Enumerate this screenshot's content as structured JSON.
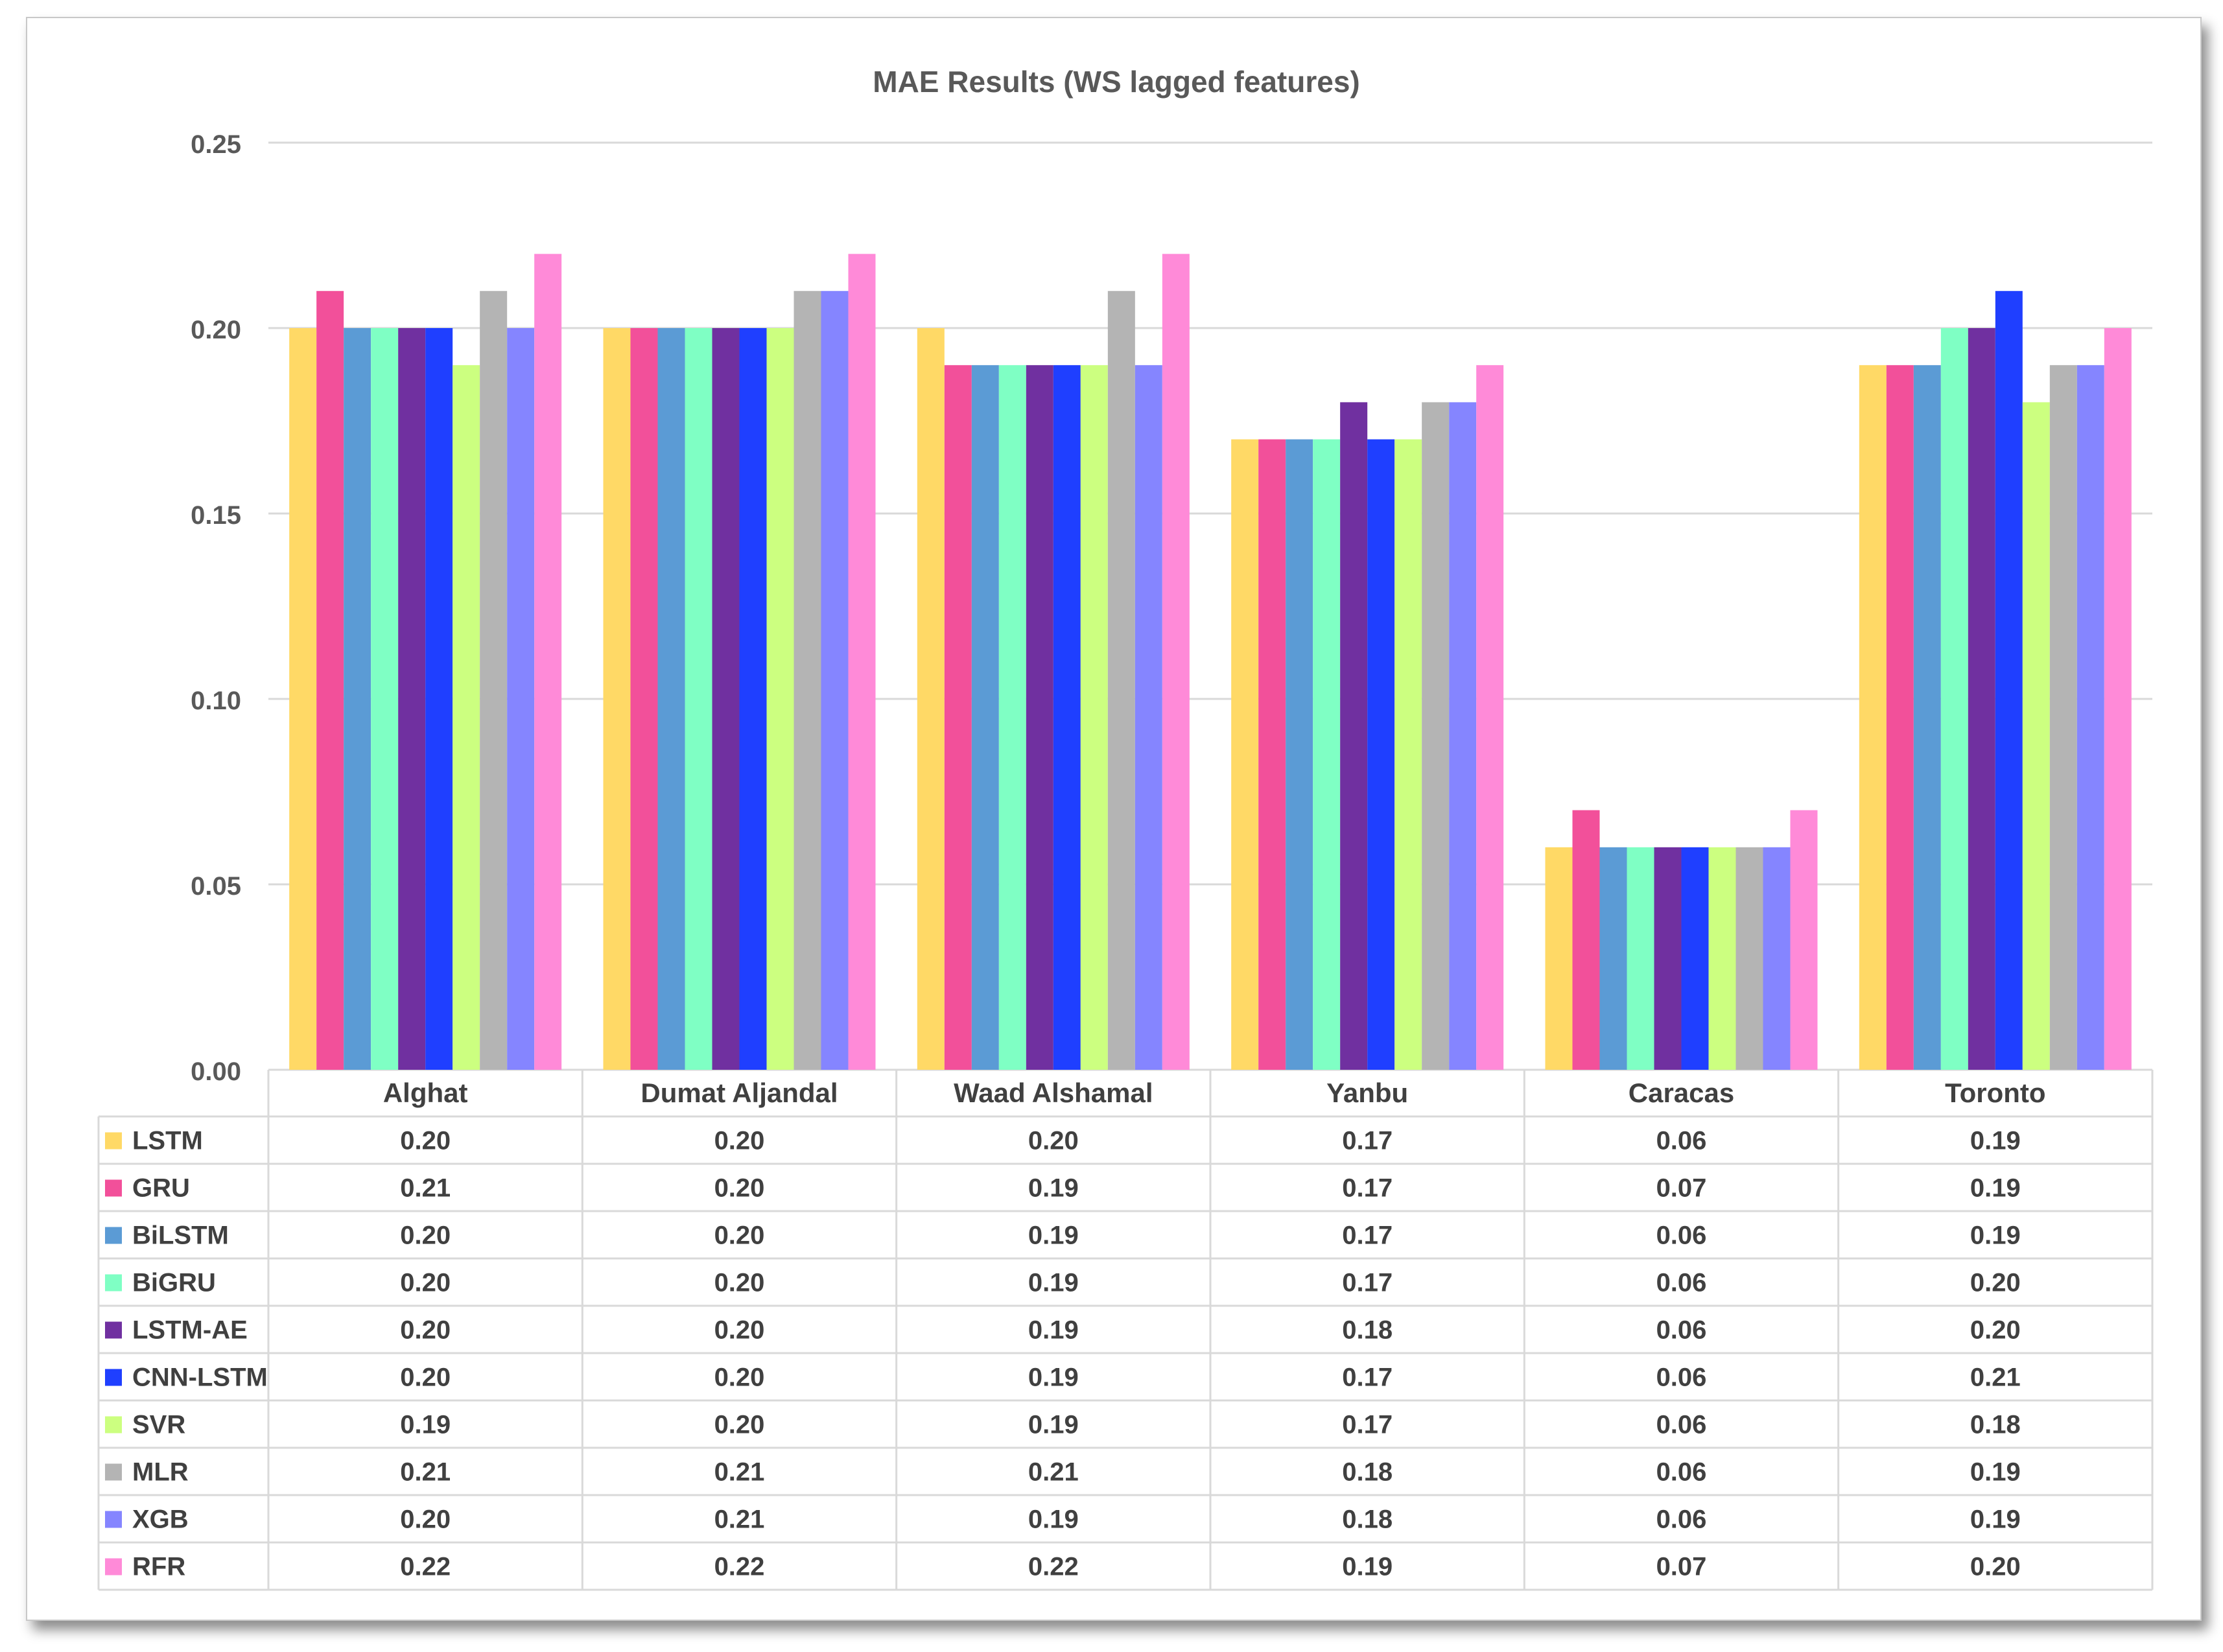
{
  "chart_data": {
    "type": "bar",
    "title": "MAE Results (WS lagged features)",
    "xlabel": "",
    "ylabel": "",
    "ylim": [
      0,
      0.25
    ],
    "yticks": [
      "0.00",
      "0.05",
      "0.10",
      "0.15",
      "0.20",
      "0.25"
    ],
    "grid": true,
    "legend": "data-table",
    "categories": [
      "Alghat",
      "Dumat Aljandal",
      "Waad Alshamal",
      "Yanbu",
      "Caracas",
      "Toronto"
    ],
    "series": [
      {
        "name": "LSTM",
        "color": "#FFD966",
        "values": [
          0.2,
          0.2,
          0.2,
          0.17,
          0.06,
          0.19
        ],
        "labels": [
          "0.20",
          "0.20",
          "0.20",
          "0.17",
          "0.06",
          "0.19"
        ]
      },
      {
        "name": "GRU",
        "color": "#F2509A",
        "values": [
          0.21,
          0.2,
          0.19,
          0.17,
          0.07,
          0.19
        ],
        "labels": [
          "0.21",
          "0.20",
          "0.19",
          "0.17",
          "0.07",
          "0.19"
        ]
      },
      {
        "name": "BiLSTM",
        "color": "#5B9BD5",
        "values": [
          0.2,
          0.2,
          0.19,
          0.17,
          0.06,
          0.19
        ],
        "labels": [
          "0.20",
          "0.20",
          "0.19",
          "0.17",
          "0.06",
          "0.19"
        ]
      },
      {
        "name": "BiGRU",
        "color": "#7FFFC4",
        "values": [
          0.2,
          0.2,
          0.19,
          0.17,
          0.06,
          0.2
        ],
        "labels": [
          "0.20",
          "0.20",
          "0.19",
          "0.17",
          "0.06",
          "0.20"
        ]
      },
      {
        "name": "LSTM-AE",
        "color": "#7030A0",
        "values": [
          0.2,
          0.2,
          0.19,
          0.18,
          0.06,
          0.2
        ],
        "labels": [
          "0.20",
          "0.20",
          "0.19",
          "0.18",
          "0.06",
          "0.20"
        ]
      },
      {
        "name": "CNN-LSTM",
        "color": "#1F3FFF",
        "values": [
          0.2,
          0.2,
          0.19,
          0.17,
          0.06,
          0.21
        ],
        "labels": [
          "0.20",
          "0.20",
          "0.19",
          "0.17",
          "0.06",
          "0.21"
        ]
      },
      {
        "name": "SVR",
        "color": "#CCFF80",
        "values": [
          0.19,
          0.2,
          0.19,
          0.17,
          0.06,
          0.18
        ],
        "labels": [
          "0.19",
          "0.20",
          "0.19",
          "0.17",
          "0.06",
          "0.18"
        ]
      },
      {
        "name": "MLR",
        "color": "#B4B4B4",
        "values": [
          0.21,
          0.21,
          0.21,
          0.18,
          0.06,
          0.19
        ],
        "labels": [
          "0.21",
          "0.21",
          "0.21",
          "0.18",
          "0.06",
          "0.19"
        ]
      },
      {
        "name": "XGB",
        "color": "#8585FF",
        "values": [
          0.2,
          0.21,
          0.19,
          0.18,
          0.06,
          0.19
        ],
        "labels": [
          "0.20",
          "0.21",
          "0.19",
          "0.18",
          "0.06",
          "0.19"
        ]
      },
      {
        "name": "RFR",
        "color": "#FF8AD8",
        "values": [
          0.22,
          0.22,
          0.22,
          0.19,
          0.07,
          0.2
        ],
        "labels": [
          "0.22",
          "0.22",
          "0.22",
          "0.19",
          "0.07",
          "0.20"
        ]
      }
    ]
  }
}
